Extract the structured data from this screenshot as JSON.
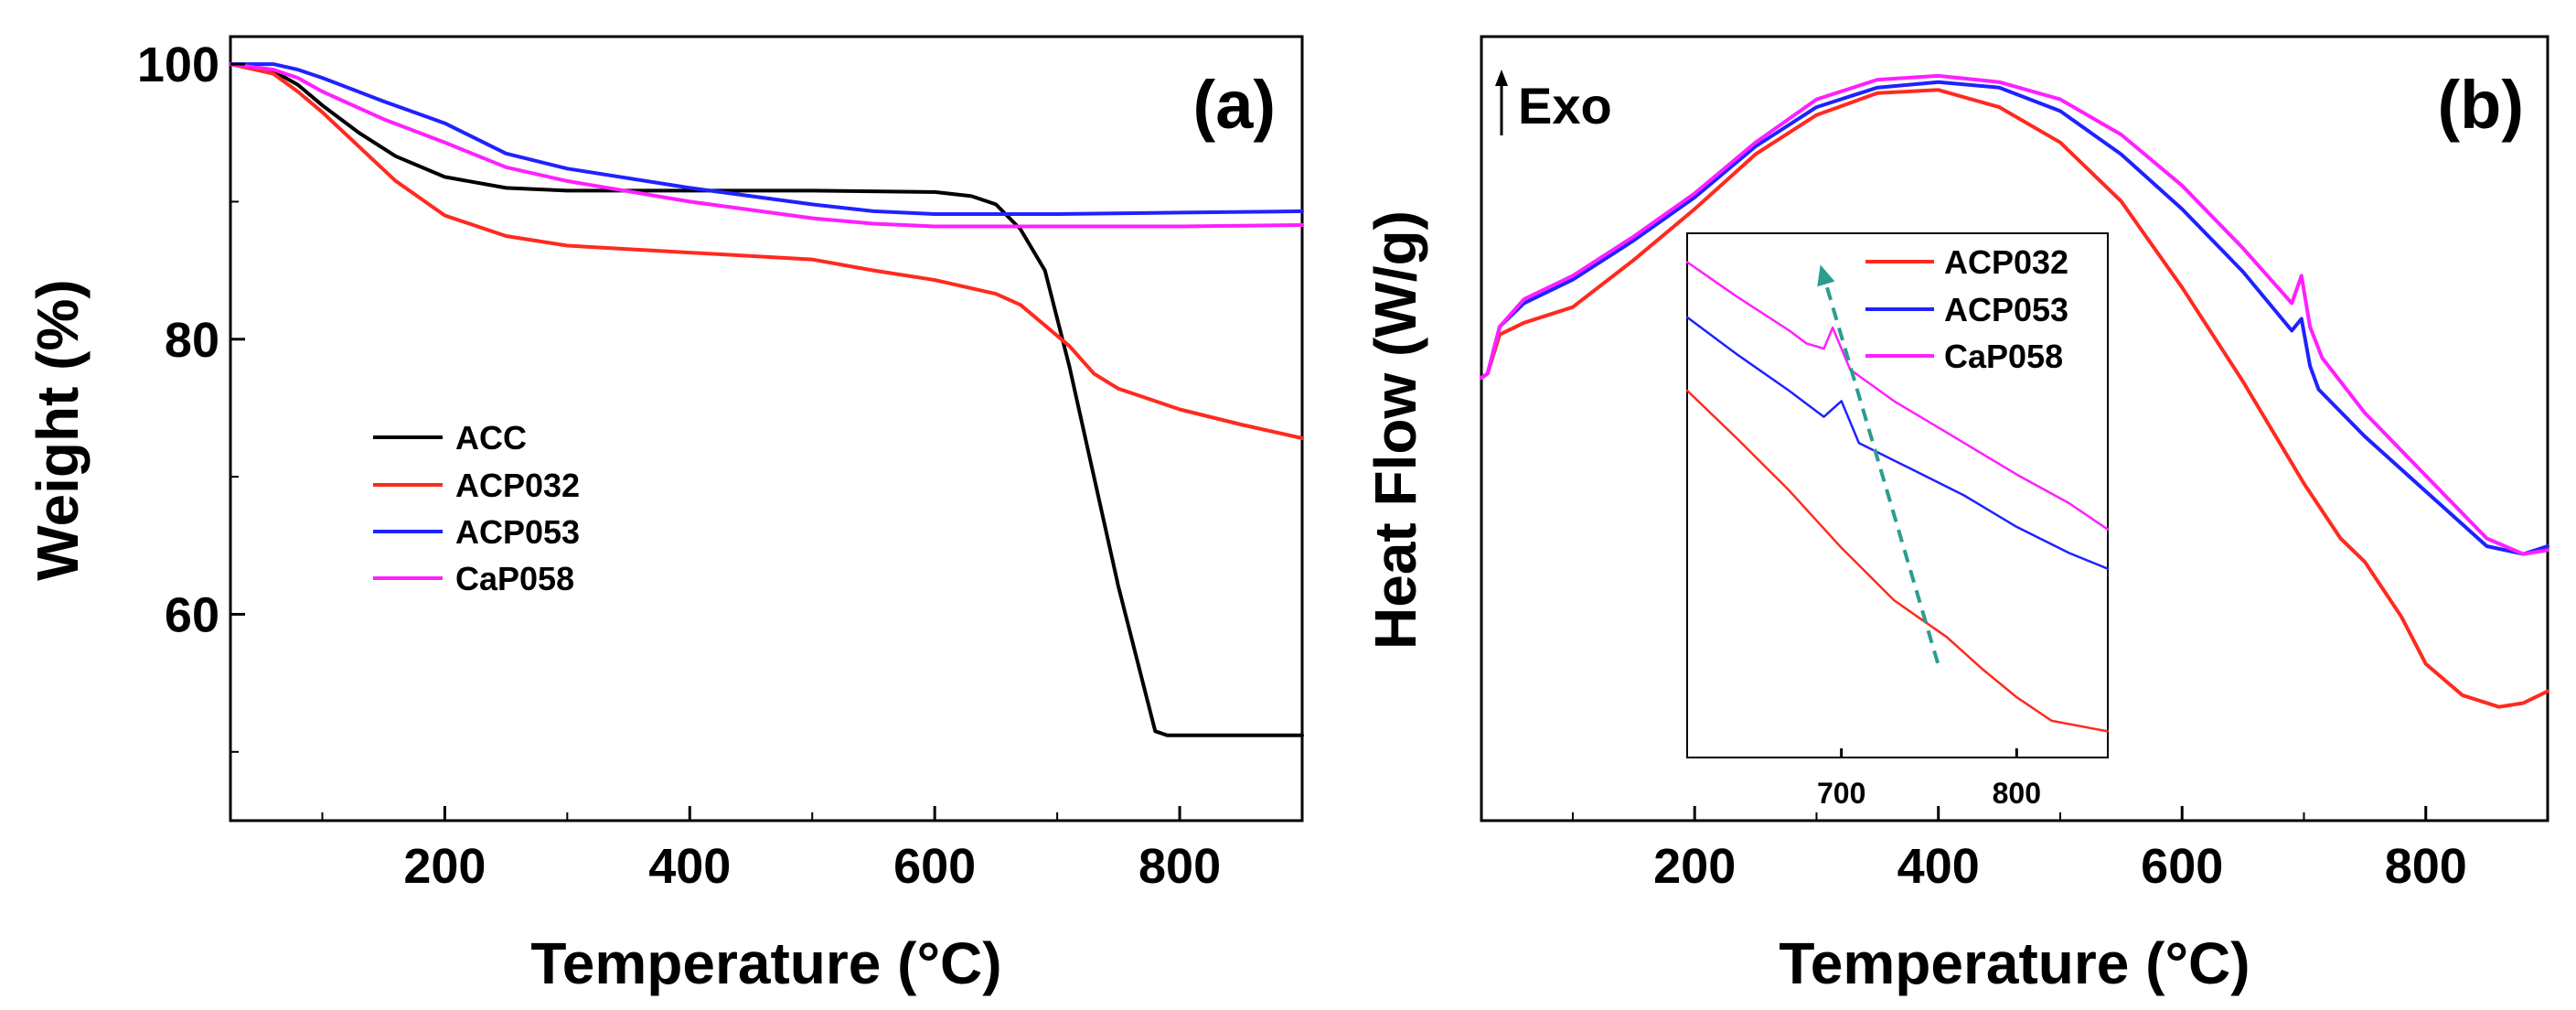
{
  "colors": {
    "axis": "#000000",
    "ACC": "#000000",
    "ACP032": "#ff2a1f",
    "ACP053": "#1f22ff",
    "CaP058": "#ff1fff",
    "arrow": "#2a9d8f"
  },
  "chart_data": [
    {
      "type": "line",
      "panel_label": "(a)",
      "xlabel": "Temperature (°C)",
      "ylabel": "Weight (%)",
      "xlim": [
        25,
        900
      ],
      "ylim": [
        45,
        102
      ],
      "x_ticks": [
        200,
        400,
        600,
        800
      ],
      "x_minor_ticks": [
        100,
        300,
        500,
        700
      ],
      "y_ticks": [
        60,
        80,
        100
      ],
      "y_minor_ticks": [
        50,
        70,
        90
      ],
      "legend": {
        "position": "center-left",
        "entries": [
          "ACC",
          "ACP032",
          "ACP053",
          "CaP058"
        ]
      },
      "series": [
        {
          "name": "ACC",
          "color": "#000000",
          "x": [
            25,
            60,
            80,
            100,
            130,
            160,
            200,
            250,
            300,
            400,
            500,
            600,
            630,
            650,
            670,
            690,
            710,
            730,
            750,
            770,
            780,
            790,
            800,
            850,
            900
          ],
          "y": [
            100,
            99.5,
            98.5,
            97,
            95,
            93.3,
            91.8,
            91,
            90.8,
            90.8,
            90.8,
            90.7,
            90.4,
            89.8,
            88,
            85,
            78,
            70,
            62,
            55,
            51.5,
            51.2,
            51.2,
            51.2,
            51.2
          ]
        },
        {
          "name": "ACP032",
          "color": "#ff2a1f",
          "x": [
            25,
            60,
            80,
            100,
            130,
            160,
            200,
            250,
            300,
            400,
            500,
            550,
            600,
            650,
            670,
            690,
            710,
            730,
            750,
            780,
            800,
            850,
            900
          ],
          "y": [
            100,
            99.3,
            98,
            96.5,
            94,
            91.5,
            89,
            87.5,
            86.8,
            86.3,
            85.8,
            85,
            84.3,
            83.3,
            82.5,
            81,
            79.5,
            77.5,
            76.4,
            75.5,
            74.9,
            73.8,
            72.8
          ]
        },
        {
          "name": "ACP053",
          "color": "#1f22ff",
          "x": [
            25,
            60,
            80,
            100,
            150,
            200,
            250,
            300,
            400,
            500,
            550,
            600,
            700,
            800,
            900
          ],
          "y": [
            100,
            100,
            99.6,
            99,
            97.3,
            95.7,
            93.5,
            92.4,
            91,
            89.8,
            89.3,
            89.1,
            89.1,
            89.2,
            89.3
          ]
        },
        {
          "name": "CaP058",
          "color": "#ff1fff",
          "x": [
            25,
            60,
            80,
            100,
            150,
            200,
            250,
            300,
            400,
            500,
            550,
            600,
            700,
            800,
            900
          ],
          "y": [
            100,
            99.6,
            99,
            98,
            96,
            94.3,
            92.5,
            91.5,
            90,
            88.8,
            88.4,
            88.2,
            88.2,
            88.2,
            88.3
          ]
        }
      ]
    },
    {
      "type": "line",
      "panel_label": "(b)",
      "annotation": "Exo",
      "xlabel": "Temperature (°C)",
      "ylabel": "Heat Flow (W/g)",
      "xlim": [
        25,
        900
      ],
      "ylim": [
        0,
        100
      ],
      "x_ticks": [
        200,
        400,
        600,
        800
      ],
      "x_minor_ticks": [
        100,
        300,
        500,
        700
      ],
      "y_ticks": [],
      "series": [
        {
          "name": "ACP032",
          "color": "#ff2a1f",
          "x": [
            25,
            30,
            40,
            60,
            100,
            150,
            200,
            250,
            300,
            350,
            400,
            450,
            500,
            550,
            600,
            650,
            700,
            730,
            750,
            780,
            800,
            830,
            860,
            880,
            900
          ],
          "y": [
            56.5,
            57,
            62,
            63.5,
            65.5,
            71.5,
            78,
            85,
            90,
            92.8,
            93.2,
            91,
            86.5,
            79,
            68,
            56,
            43,
            36,
            33,
            26,
            20,
            16,
            14.5,
            15,
            16.5
          ]
        },
        {
          "name": "ACP053",
          "color": "#1f22ff",
          "x": [
            25,
            30,
            40,
            60,
            100,
            150,
            200,
            250,
            300,
            350,
            400,
            450,
            500,
            550,
            600,
            650,
            690,
            698,
            705,
            712,
            750,
            800,
            850,
            880,
            900
          ],
          "y": [
            56.5,
            57,
            63,
            66,
            69,
            74,
            79.5,
            86,
            91,
            93.5,
            94.2,
            93.5,
            90.5,
            85,
            78,
            70,
            62.5,
            64,
            58,
            55,
            49,
            42,
            35,
            34,
            35
          ]
        },
        {
          "name": "CaP058",
          "color": "#ff1fff",
          "x": [
            25,
            30,
            40,
            60,
            100,
            150,
            200,
            250,
            300,
            350,
            400,
            450,
            500,
            550,
            600,
            650,
            690,
            698,
            705,
            715,
            750,
            800,
            850,
            880,
            900
          ],
          "y": [
            56.5,
            57,
            63,
            66.5,
            69.5,
            74.5,
            80,
            86.5,
            92,
            94.5,
            95,
            94.2,
            92,
            87.5,
            81,
            73,
            66,
            69.5,
            63,
            59,
            52,
            44,
            36,
            34,
            34.5
          ]
        }
      ],
      "inset": {
        "x_ticks": [
          700,
          800
        ],
        "xlim": [
          612,
          852
        ],
        "ylim": [
          0,
          100
        ],
        "legend": {
          "position": "top-right",
          "entries": [
            "ACP032",
            "ACP053",
            "CaP058"
          ]
        },
        "arrow": {
          "from": [
            755,
            18
          ],
          "to": [
            688,
            94
          ]
        },
        "series": [
          {
            "name": "ACP032",
            "color": "#ff2a1f",
            "x": [
              612,
              640,
              670,
              700,
              730,
              745,
              760,
              780,
              800,
              820,
              852
            ],
            "y": [
              70,
              61,
              51,
              40,
              30,
              26.5,
              23,
              17,
              11.5,
              7,
              5
            ]
          },
          {
            "name": "ACP053",
            "color": "#1f22ff",
            "x": [
              612,
              640,
              670,
              690,
              700,
              705,
              710,
              740,
              770,
              800,
              830,
              852
            ],
            "y": [
              84,
              77,
              70,
              65,
              68,
              64,
              60,
              55,
              50,
              44,
              39,
              36
            ]
          },
          {
            "name": "CaP058",
            "color": "#ff1fff",
            "x": [
              612,
              640,
              670,
              680,
              690,
              695,
              705,
              730,
              760,
              800,
              830,
              852
            ],
            "y": [
              94.5,
              88,
              81.5,
              79,
              78,
              82,
              74,
              68,
              62,
              54,
              48.5,
              43.5
            ]
          }
        ]
      }
    }
  ]
}
